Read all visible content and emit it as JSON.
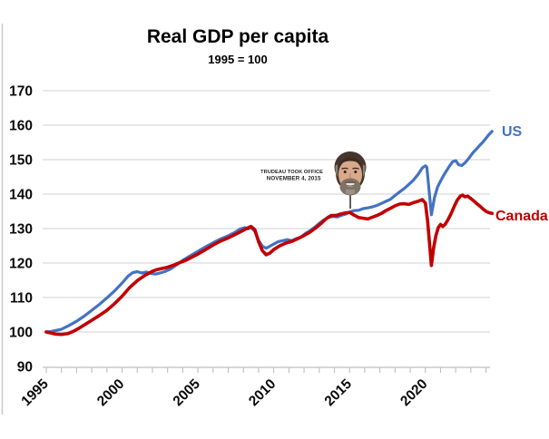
{
  "page": {
    "background": "#ffffff"
  },
  "chart_data": {
    "type": "line",
    "title": "Real GDP per capita",
    "subtitle": "1995 = 100",
    "grid": true,
    "legend_position": "end-of-line-labels",
    "colors": {
      "us": "#4472C4",
      "canada": "#C00000",
      "grid": "#D9D9D9",
      "axis": "#BFBFBF",
      "text": "#000000"
    },
    "x_axis": {
      "label": "",
      "range": [
        1995,
        2024.5
      ],
      "labeled_ticks": [
        1995,
        2000,
        2005,
        2010,
        2015,
        2020
      ],
      "minor_tick_start": 1995,
      "minor_tick_end": 2024,
      "minor_tick_step": 1
    },
    "y_axis": {
      "label": "",
      "range": [
        90,
        170
      ],
      "ticks": [
        170,
        160,
        150,
        140,
        130,
        120,
        110,
        100,
        90
      ]
    },
    "annotation": {
      "line1": "TRUDEAU TOOK OFFICE",
      "line2": "NOVEMBER 4, 2015",
      "pointer_year": 2015.05,
      "image": "trudeau-face-photo"
    },
    "series": [
      {
        "name": "US",
        "label": "US",
        "color": "#4472C4",
        "points": [
          [
            1995.0,
            100
          ],
          [
            1995.3,
            100.1
          ],
          [
            1995.6,
            100.4
          ],
          [
            1996.0,
            100.8
          ],
          [
            1996.5,
            101.9
          ],
          [
            1997.0,
            103.1
          ],
          [
            1997.5,
            104.6
          ],
          [
            1998.0,
            106.3
          ],
          [
            1998.5,
            108.0
          ],
          [
            1999.0,
            109.9
          ],
          [
            1999.5,
            111.9
          ],
          [
            2000.0,
            114.2
          ],
          [
            2000.4,
            116.2
          ],
          [
            2000.7,
            117.2
          ],
          [
            2001.0,
            117.5
          ],
          [
            2001.3,
            117.1
          ],
          [
            2001.6,
            117.4
          ],
          [
            2001.9,
            117.0
          ],
          [
            2002.2,
            116.8
          ],
          [
            2002.5,
            117.1
          ],
          [
            2002.8,
            117.5
          ],
          [
            2003.2,
            118.3
          ],
          [
            2003.6,
            119.5
          ],
          [
            2004.0,
            120.8
          ],
          [
            2004.5,
            122.1
          ],
          [
            2005.0,
            123.4
          ],
          [
            2005.5,
            124.7
          ],
          [
            2006.0,
            125.9
          ],
          [
            2006.5,
            127.0
          ],
          [
            2007.0,
            127.9
          ],
          [
            2007.4,
            128.8
          ],
          [
            2007.8,
            129.9
          ],
          [
            2008.1,
            130.3
          ],
          [
            2008.3,
            129.9
          ],
          [
            2008.5,
            130.3
          ],
          [
            2008.75,
            129.2
          ],
          [
            2009.0,
            126.6
          ],
          [
            2009.25,
            124.9
          ],
          [
            2009.5,
            124.3
          ],
          [
            2009.75,
            124.9
          ],
          [
            2010.0,
            125.5
          ],
          [
            2010.3,
            126.2
          ],
          [
            2010.6,
            126.5
          ],
          [
            2010.9,
            126.8
          ],
          [
            2011.2,
            126.5
          ],
          [
            2011.5,
            127.1
          ],
          [
            2011.8,
            127.5
          ],
          [
            2012.1,
            128.6
          ],
          [
            2012.4,
            129.4
          ],
          [
            2012.7,
            130.4
          ],
          [
            2013.0,
            131.5
          ],
          [
            2013.3,
            132.5
          ],
          [
            2013.6,
            133.2
          ],
          [
            2013.9,
            133.5
          ],
          [
            2014.2,
            133.4
          ],
          [
            2014.5,
            133.9
          ],
          [
            2014.8,
            134.3
          ],
          [
            2015.0,
            134.8
          ],
          [
            2015.3,
            135.2
          ],
          [
            2015.6,
            135.3
          ],
          [
            2015.9,
            135.8
          ],
          [
            2016.2,
            136.0
          ],
          [
            2016.5,
            136.3
          ],
          [
            2016.8,
            136.7
          ],
          [
            2017.1,
            137.3
          ],
          [
            2017.4,
            137.9
          ],
          [
            2017.7,
            138.5
          ],
          [
            2018.0,
            139.6
          ],
          [
            2018.3,
            140.6
          ],
          [
            2018.6,
            141.6
          ],
          [
            2018.9,
            142.8
          ],
          [
            2019.2,
            144.0
          ],
          [
            2019.5,
            145.6
          ],
          [
            2019.8,
            147.6
          ],
          [
            2020.0,
            148.2
          ],
          [
            2020.1,
            147.8
          ],
          [
            2020.4,
            134.0
          ],
          [
            2020.6,
            139.0
          ],
          [
            2020.8,
            142.0
          ],
          [
            2021.0,
            143.8
          ],
          [
            2021.2,
            145.4
          ],
          [
            2021.4,
            146.8
          ],
          [
            2021.6,
            148.2
          ],
          [
            2021.8,
            149.4
          ],
          [
            2022.0,
            149.7
          ],
          [
            2022.2,
            148.5
          ],
          [
            2022.4,
            148.3
          ],
          [
            2022.6,
            149.0
          ],
          [
            2022.8,
            150.0
          ],
          [
            2023.0,
            151.2
          ],
          [
            2023.2,
            152.3
          ],
          [
            2023.4,
            153.2
          ],
          [
            2023.6,
            154.2
          ],
          [
            2023.8,
            155.1
          ],
          [
            2024.0,
            156.2
          ],
          [
            2024.2,
            157.3
          ],
          [
            2024.4,
            158.2
          ]
        ]
      },
      {
        "name": "Canada",
        "label": "Canada",
        "color": "#C00000",
        "points": [
          [
            1995.0,
            100
          ],
          [
            1995.3,
            99.7
          ],
          [
            1995.6,
            99.4
          ],
          [
            1996.0,
            99.3
          ],
          [
            1996.4,
            99.5
          ],
          [
            1996.8,
            100.2
          ],
          [
            1997.2,
            101.2
          ],
          [
            1997.6,
            102.3
          ],
          [
            1998.0,
            103.4
          ],
          [
            1998.5,
            104.8
          ],
          [
            1999.0,
            106.3
          ],
          [
            1999.5,
            108.2
          ],
          [
            2000.0,
            110.4
          ],
          [
            2000.5,
            112.9
          ],
          [
            2001.0,
            114.9
          ],
          [
            2001.5,
            116.4
          ],
          [
            2002.0,
            117.6
          ],
          [
            2002.3,
            118.1
          ],
          [
            2002.6,
            118.4
          ],
          [
            2003.0,
            118.8
          ],
          [
            2003.4,
            119.4
          ],
          [
            2003.8,
            120.1
          ],
          [
            2004.2,
            120.8
          ],
          [
            2004.6,
            121.7
          ],
          [
            2005.0,
            122.6
          ],
          [
            2005.5,
            123.9
          ],
          [
            2006.0,
            125.2
          ],
          [
            2006.5,
            126.4
          ],
          [
            2007.0,
            127.3
          ],
          [
            2007.5,
            128.4
          ],
          [
            2008.0,
            129.5
          ],
          [
            2008.3,
            130.2
          ],
          [
            2008.5,
            130.6
          ],
          [
            2008.75,
            129.7
          ],
          [
            2009.0,
            126.2
          ],
          [
            2009.25,
            123.6
          ],
          [
            2009.5,
            122.4
          ],
          [
            2009.75,
            122.9
          ],
          [
            2010.0,
            123.9
          ],
          [
            2010.4,
            125.0
          ],
          [
            2010.8,
            125.8
          ],
          [
            2011.2,
            126.3
          ],
          [
            2011.6,
            127.1
          ],
          [
            2012.0,
            128.0
          ],
          [
            2012.4,
            129.0
          ],
          [
            2012.8,
            130.3
          ],
          [
            2013.2,
            131.8
          ],
          [
            2013.5,
            133.0
          ],
          [
            2013.8,
            133.8
          ],
          [
            2014.1,
            133.8
          ],
          [
            2014.4,
            134.2
          ],
          [
            2014.7,
            134.5
          ],
          [
            2015.0,
            134.7
          ],
          [
            2015.3,
            133.9
          ],
          [
            2015.6,
            133.2
          ],
          [
            2015.9,
            133.0
          ],
          [
            2016.2,
            132.8
          ],
          [
            2016.5,
            133.3
          ],
          [
            2016.8,
            133.8
          ],
          [
            2017.1,
            134.4
          ],
          [
            2017.4,
            135.2
          ],
          [
            2017.7,
            135.9
          ],
          [
            2018.0,
            136.6
          ],
          [
            2018.3,
            137.1
          ],
          [
            2018.6,
            137.2
          ],
          [
            2018.9,
            137.0
          ],
          [
            2019.2,
            137.5
          ],
          [
            2019.5,
            137.9
          ],
          [
            2019.8,
            138.4
          ],
          [
            2020.0,
            137.4
          ],
          [
            2020.15,
            132.0
          ],
          [
            2020.4,
            119.3
          ],
          [
            2020.55,
            124.5
          ],
          [
            2020.7,
            128.0
          ],
          [
            2020.85,
            130.3
          ],
          [
            2021.0,
            131.2
          ],
          [
            2021.15,
            130.6
          ],
          [
            2021.3,
            131.2
          ],
          [
            2021.5,
            132.6
          ],
          [
            2021.7,
            134.4
          ],
          [
            2021.9,
            136.4
          ],
          [
            2022.1,
            138.2
          ],
          [
            2022.3,
            139.4
          ],
          [
            2022.45,
            139.7
          ],
          [
            2022.6,
            139.2
          ],
          [
            2022.8,
            139.4
          ],
          [
            2023.0,
            138.7
          ],
          [
            2023.2,
            138.0
          ],
          [
            2023.4,
            137.2
          ],
          [
            2023.6,
            136.5
          ],
          [
            2023.8,
            135.7
          ],
          [
            2024.0,
            135.0
          ],
          [
            2024.2,
            134.6
          ],
          [
            2024.4,
            134.4
          ]
        ]
      }
    ]
  }
}
